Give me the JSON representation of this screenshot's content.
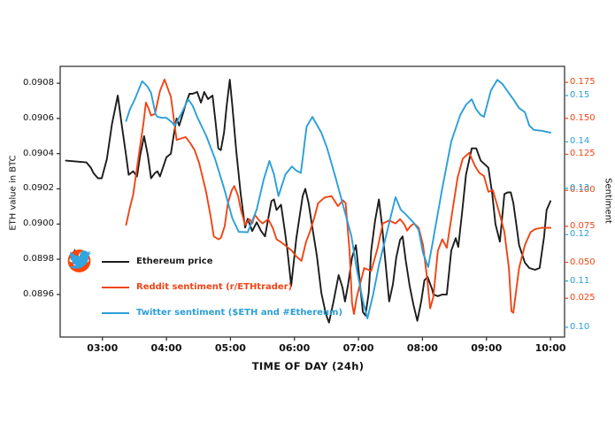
{
  "chart_data": {
    "type": "line",
    "title": "",
    "x_axis": {
      "title": "TIME OF DAY (24h)",
      "tick_labels": [
        "03:00",
        "04:00",
        "05:00",
        "06:00",
        "07:00",
        "08:00",
        "09:00",
        "10:00"
      ],
      "tick_hours": [
        3,
        4,
        5,
        6,
        7,
        8,
        9,
        10
      ],
      "range_hours": [
        2.34,
        10.22
      ],
      "grid": false
    },
    "left_axis": {
      "title": "ETH value in BTC",
      "ticks": [
        0.0908,
        0.0906,
        0.0904,
        0.0902,
        0.09,
        0.0898,
        0.0896
      ],
      "range": [
        0.089358,
        0.090896
      ],
      "color": "#111111"
    },
    "right_axis_reddit": {
      "ticks": [
        0.175,
        0.15,
        0.125,
        0.1,
        0.075,
        0.05,
        0.025
      ],
      "range": [
        -0.0019,
        0.1861
      ],
      "color": "#ee4515"
    },
    "right_axis_twitter": {
      "title": "Sentiment",
      "ticks": [
        0.15,
        0.14,
        0.13,
        0.12,
        0.11,
        0.1
      ],
      "range": [
        0.0979,
        0.1563
      ],
      "color": "#2b9fd8"
    },
    "series": [
      {
        "name": "Ethereum price",
        "axis": "price",
        "color": "#1c1c1c",
        "x": [
          2.43,
          2.75,
          2.82,
          2.86,
          2.93,
          2.99,
          3.07,
          3.15,
          3.24,
          3.3,
          3.37,
          3.41,
          3.48,
          3.54,
          3.59,
          3.65,
          3.71,
          3.76,
          3.82,
          3.86,
          3.9,
          4.0,
          4.07,
          4.12,
          4.16,
          4.2,
          4.26,
          4.3,
          4.36,
          4.41,
          4.48,
          4.54,
          4.59,
          4.65,
          4.72,
          4.77,
          4.81,
          4.85,
          4.9,
          4.94,
          4.99,
          5.03,
          5.09,
          5.16,
          5.23,
          5.27,
          5.34,
          5.41,
          5.48,
          5.54,
          5.64,
          5.68,
          5.72,
          5.79,
          5.85,
          5.89,
          5.95,
          6.03,
          6.13,
          6.17,
          6.22,
          6.28,
          6.35,
          6.42,
          6.49,
          6.54,
          6.61,
          6.69,
          6.75,
          6.79,
          6.84,
          6.9,
          6.96,
          7.01,
          7.07,
          7.11,
          7.16,
          7.2,
          7.26,
          7.32,
          7.37,
          7.41,
          7.48,
          7.54,
          7.59,
          7.65,
          7.69,
          7.74,
          7.8,
          7.86,
          7.92,
          7.98,
          8.03,
          8.08,
          8.12,
          8.15,
          8.17,
          8.24,
          8.31,
          8.38,
          8.45,
          8.52,
          8.56,
          8.62,
          8.68,
          8.77,
          8.84,
          8.91,
          8.97,
          9.03,
          9.09,
          9.14,
          9.21,
          9.28,
          9.33,
          9.38,
          9.42,
          9.47,
          9.51,
          9.6,
          9.67,
          9.76,
          9.83,
          9.9,
          9.94,
          10.0
        ],
        "y": [
          0.09036,
          0.09035,
          0.09032,
          0.09029,
          0.09026,
          0.09026,
          0.09037,
          0.09057,
          0.09073,
          0.09057,
          0.09039,
          0.09028,
          0.0903,
          0.09027,
          0.09039,
          0.0905,
          0.09039,
          0.09026,
          0.09029,
          0.0903,
          0.09027,
          0.09038,
          0.0904,
          0.09052,
          0.0906,
          0.09056,
          0.09063,
          0.09068,
          0.09074,
          0.09074,
          0.09075,
          0.09069,
          0.09075,
          0.09071,
          0.09073,
          0.09057,
          0.09043,
          0.09042,
          0.09052,
          0.09067,
          0.09082,
          0.09067,
          0.09042,
          0.09017,
          0.08998,
          0.09003,
          0.08996,
          0.09001,
          0.08996,
          0.08993,
          0.09013,
          0.09014,
          0.09008,
          0.09011,
          0.08996,
          0.08985,
          0.08965,
          0.08992,
          0.09016,
          0.0902,
          0.09012,
          0.08998,
          0.08982,
          0.08961,
          0.08949,
          0.08944,
          0.08956,
          0.08971,
          0.08964,
          0.08956,
          0.08966,
          0.08981,
          0.08988,
          0.08971,
          0.0895,
          0.08948,
          0.08961,
          0.08985,
          0.09002,
          0.09014,
          0.08999,
          0.08983,
          0.08956,
          0.08966,
          0.08981,
          0.08991,
          0.08993,
          0.08979,
          0.08965,
          0.08954,
          0.08945,
          0.08956,
          0.08968,
          0.0897,
          0.08966,
          0.08963,
          0.0896,
          0.08959,
          0.0896,
          0.0896,
          0.08985,
          0.08992,
          0.08987,
          0.09007,
          0.09028,
          0.09043,
          0.09043,
          0.09036,
          0.09034,
          0.09032,
          0.09017,
          0.09,
          0.0899,
          0.09017,
          0.09018,
          0.09018,
          0.09012,
          0.08999,
          0.08988,
          0.08978,
          0.08975,
          0.08974,
          0.08975,
          0.08993,
          0.09008,
          0.09013
        ]
      },
      {
        "name": "Reddit sentiment (r/ETHtrader)",
        "axis": "reddit",
        "color": "#ee4515",
        "x": [
          3.37,
          3.43,
          3.48,
          3.58,
          3.64,
          3.68,
          3.72,
          3.76,
          3.82,
          3.9,
          3.97,
          4.07,
          4.16,
          4.23,
          4.3,
          4.37,
          4.44,
          4.51,
          4.56,
          4.62,
          4.69,
          4.74,
          4.81,
          4.85,
          4.91,
          4.96,
          5.02,
          5.06,
          5.12,
          5.16,
          5.23,
          5.3,
          5.34,
          5.38,
          5.45,
          5.5,
          5.59,
          5.66,
          5.72,
          5.79,
          5.85,
          5.96,
          6.03,
          6.11,
          6.18,
          6.24,
          6.31,
          6.37,
          6.47,
          6.58,
          6.68,
          6.76,
          6.8,
          6.86,
          6.9,
          6.93,
          6.97,
          7.02,
          7.09,
          7.15,
          7.2,
          7.3,
          7.38,
          7.48,
          7.58,
          7.65,
          7.72,
          7.76,
          7.81,
          7.87,
          7.94,
          8.01,
          8.08,
          8.12,
          8.17,
          8.24,
          8.31,
          8.38,
          8.48,
          8.55,
          8.63,
          8.73,
          8.82,
          8.89,
          8.96,
          9.03,
          9.1,
          9.21,
          9.28,
          9.35,
          9.39,
          9.42,
          9.51,
          9.6,
          9.69,
          9.76,
          9.86,
          10.0
        ],
        "y": [
          0.076,
          0.088,
          0.097,
          0.128,
          0.146,
          0.161,
          0.157,
          0.152,
          0.153,
          0.169,
          0.177,
          0.165,
          0.135,
          0.136,
          0.137,
          0.133,
          0.128,
          0.119,
          0.11,
          0.099,
          0.082,
          0.068,
          0.066,
          0.067,
          0.075,
          0.091,
          0.1,
          0.103,
          0.096,
          0.087,
          0.076,
          0.08,
          0.077,
          0.083,
          0.079,
          0.077,
          0.08,
          0.074,
          0.066,
          0.064,
          0.062,
          0.058,
          0.054,
          0.051,
          0.064,
          0.071,
          0.081,
          0.091,
          0.095,
          0.096,
          0.089,
          0.093,
          0.091,
          0.058,
          0.022,
          0.014,
          0.025,
          0.034,
          0.046,
          0.045,
          0.044,
          0.06,
          0.077,
          0.079,
          0.077,
          0.08,
          0.076,
          0.072,
          0.075,
          0.077,
          0.074,
          0.062,
          0.036,
          0.018,
          0.026,
          0.058,
          0.066,
          0.06,
          0.089,
          0.109,
          0.122,
          0.126,
          0.117,
          0.112,
          0.11,
          0.099,
          0.1,
          0.083,
          0.071,
          0.046,
          0.016,
          0.015,
          0.046,
          0.062,
          0.071,
          0.073,
          0.074,
          0.074
        ]
      },
      {
        "name": "Twitter sentiment ($ETH and #Ethereum)",
        "axis": "twitter",
        "color": "#2b9fd8",
        "x": [
          3.37,
          3.43,
          3.5,
          3.56,
          3.62,
          3.7,
          3.76,
          3.83,
          3.86,
          3.94,
          4.0,
          4.08,
          4.13,
          4.23,
          4.34,
          4.41,
          4.48,
          4.62,
          4.76,
          4.9,
          5.03,
          5.13,
          5.27,
          5.41,
          5.52,
          5.61,
          5.68,
          5.75,
          5.86,
          5.96,
          6.03,
          6.1,
          6.19,
          6.28,
          6.42,
          6.51,
          6.65,
          6.79,
          6.89,
          6.97,
          7.07,
          7.14,
          7.23,
          7.32,
          7.41,
          7.48,
          7.58,
          7.66,
          7.73,
          7.86,
          7.94,
          8.01,
          8.09,
          8.17,
          8.31,
          8.45,
          8.59,
          8.68,
          8.77,
          8.84,
          8.91,
          8.96,
          9.07,
          9.17,
          9.25,
          9.32,
          9.42,
          9.51,
          9.6,
          9.67,
          9.74,
          9.86,
          10.0
        ],
        "y": [
          0.1445,
          0.147,
          0.149,
          0.151,
          0.1531,
          0.152,
          0.1506,
          0.146,
          0.1454,
          0.1452,
          0.1452,
          0.1443,
          0.1435,
          0.146,
          0.1492,
          0.1478,
          0.1454,
          0.1414,
          0.1363,
          0.13,
          0.1235,
          0.1206,
          0.1205,
          0.1254,
          0.1319,
          0.1359,
          0.133,
          0.1283,
          0.133,
          0.1347,
          0.1338,
          0.1333,
          0.1433,
          0.1454,
          0.142,
          0.1387,
          0.1319,
          0.1248,
          0.1197,
          0.1128,
          0.1057,
          0.1019,
          0.1071,
          0.1134,
          0.1185,
          0.1225,
          0.1281,
          0.1254,
          0.1245,
          0.1226,
          0.121,
          0.116,
          0.113,
          0.1191,
          0.13,
          0.1401,
          0.1458,
          0.148,
          0.1492,
          0.147,
          0.1458,
          0.1454,
          0.1511,
          0.1534,
          0.1525,
          0.1511,
          0.1492,
          0.1473,
          0.1464,
          0.1435,
          0.1426,
          0.1424,
          0.142
        ]
      }
    ]
  },
  "legend": {
    "items": [
      {
        "icon": "ethereum-logo",
        "label": "Ethereum price",
        "color": "#1c1c1c"
      },
      {
        "icon": "reddit-logo",
        "label": "Reddit sentiment (r/ETHtrader)",
        "color": "#ee4515"
      },
      {
        "icon": "twitter-logo",
        "label": "Twitter sentiment ($ETH and #Ethereum)",
        "color": "#2b9fd8"
      }
    ]
  },
  "colors": {
    "background": "#ffffff",
    "frame": "#262626",
    "eth_icon_top": "#45494e",
    "eth_icon_bottom": "#8b8e94",
    "reddit_icon": "#ff4500",
    "twitter_icon": "#32a4e0"
  }
}
